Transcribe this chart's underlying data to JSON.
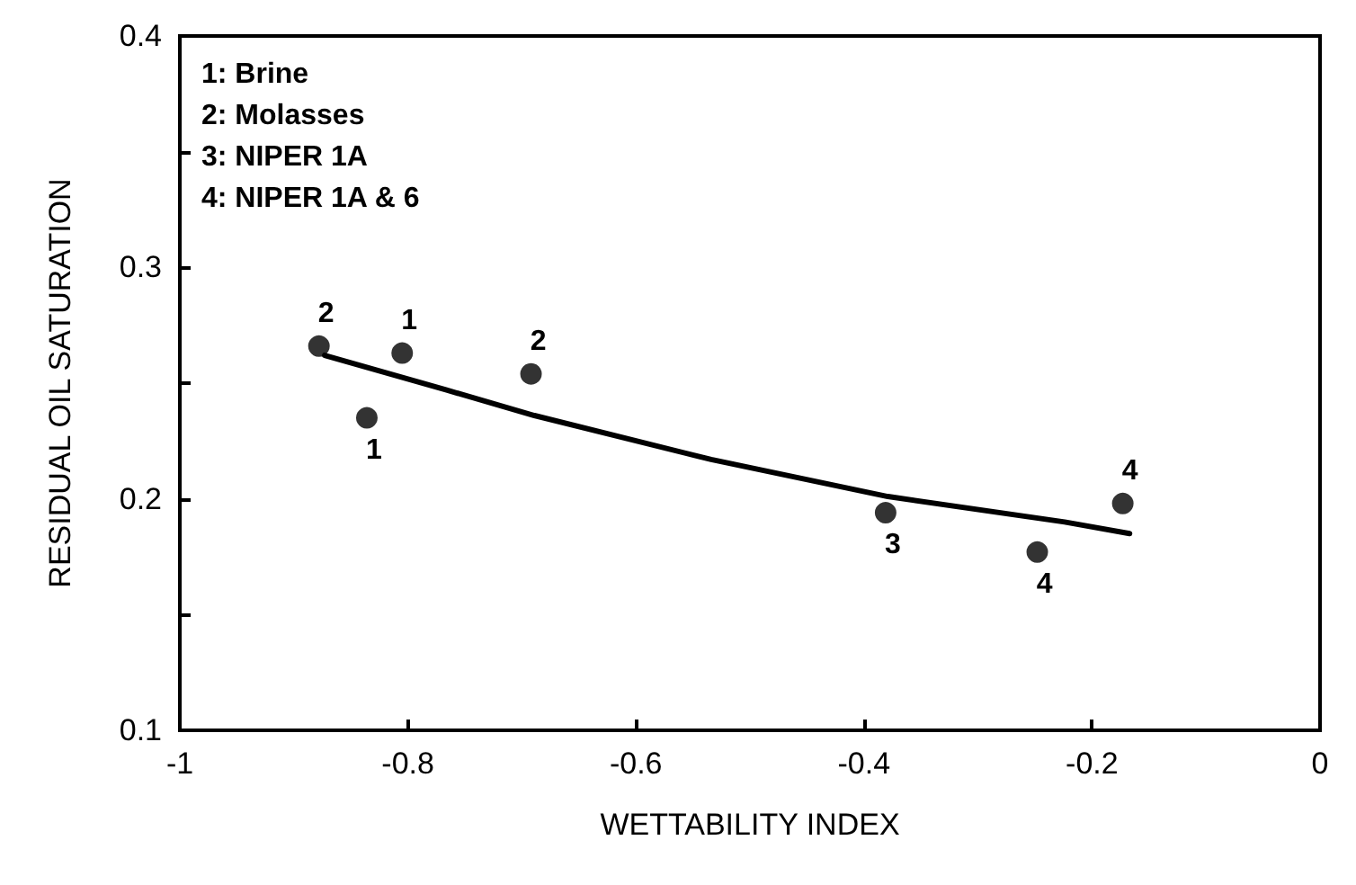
{
  "chart_data": {
    "type": "scatter",
    "xlabel": "WETTABILITY INDEX",
    "ylabel": "RESIDUAL OIL SATURATION",
    "annotations": [
      "1: Brine",
      "2: Molasses",
      "3: NIPER 1A",
      "4: NIPER 1A & 6",
      {
        "text": "2",
        "x": -0.878,
        "y": 0.266
      },
      {
        "text": "1",
        "x": -0.836,
        "y": 0.235
      },
      {
        "text": "1",
        "x": -0.805,
        "y": 0.263
      },
      {
        "text": "2",
        "x": -0.692,
        "y": 0.254
      },
      {
        "text": "3",
        "x": -0.381,
        "y": 0.194
      },
      {
        "text": "4",
        "x": -0.248,
        "y": 0.177
      },
      {
        "text": "4",
        "x": -0.173,
        "y": 0.198
      }
    ],
    "series": [
      {
        "color": "#000000",
        "x": [
          -0.878,
          -0.836,
          -0.805,
          -0.692,
          -0.381,
          -0.248,
          -0.173
        ],
        "values": [
          0.266,
          0.235,
          0.263,
          0.254,
          0.194,
          0.177,
          0.198
        ],
        "marker": "circle"
      },
      {
        "type": "line",
        "color": "#000000",
        "x": [
          -0.873,
          -0.766,
          -0.689,
          -0.534,
          -0.379,
          -0.224,
          -0.167
        ],
        "values": [
          0.262,
          0.247,
          0.236,
          0.217,
          0.201,
          0.19,
          0.185
        ],
        "marker": "none",
        "line_style": "solid"
      }
    ],
    "xlim": [
      -1,
      0
    ],
    "xticks": [
      -1,
      -0.8,
      -0.6,
      -0.4,
      -0.2,
      0
    ],
    "ylim": [
      0.1,
      0.4
    ],
    "yticks": [
      0.1,
      {
        "value": 0.15,
        "label": null
      },
      0.2,
      {
        "value": 0.25,
        "label": null
      },
      0.3,
      {
        "value": 0.35,
        "label": null
      },
      0.4
    ],
    "grid": false
  }
}
